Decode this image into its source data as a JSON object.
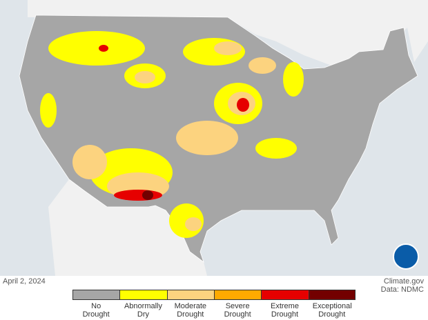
{
  "date": "April 2, 2024",
  "source": "Climate.gov",
  "data_credit": "Data: NDMC",
  "legend": [
    {
      "label": "No Drought",
      "color": "#a6a6a6"
    },
    {
      "label": "Abnormally Dry",
      "color": "#ffff00"
    },
    {
      "label": "Moderate Drought",
      "color": "#fcd37f"
    },
    {
      "label": "Severe Drought",
      "color": "#ffaa00"
    },
    {
      "label": "Extreme Drought",
      "color": "#e60000"
    },
    {
      "label": "Exceptional Drought",
      "color": "#730000"
    }
  ]
}
